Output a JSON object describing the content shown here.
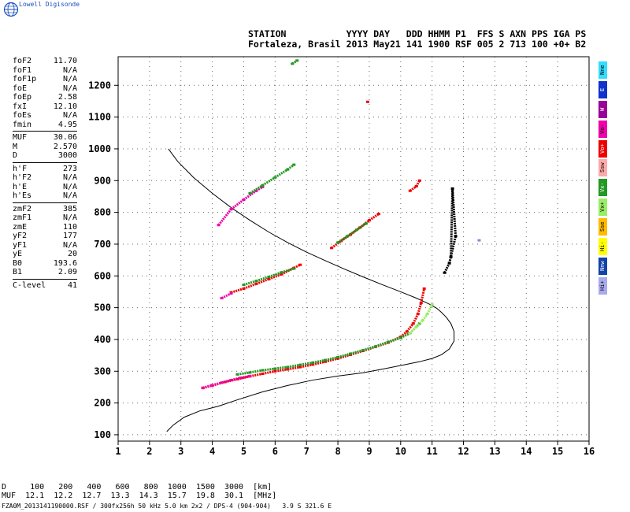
{
  "brand": {
    "name": "Lowell Digisonde"
  },
  "header": {
    "line1": "STATION           YYYY DAY   DDD HHMM P1  FFS S AXN PPS IGA PS",
    "line2": "Fortaleza, Brasil 2013 May21 141 1900 RSF 005 2 713 100 +0+ B2"
  },
  "params": [
    {
      "name": "foF2",
      "value": "11.70"
    },
    {
      "name": "foF1",
      "value": "N/A"
    },
    {
      "name": "foF1p",
      "value": "N/A"
    },
    {
      "name": "foE",
      "value": "N/A"
    },
    {
      "name": "foEp",
      "value": "2.58"
    },
    {
      "name": "fxI",
      "value": "12.10"
    },
    {
      "name": "foEs",
      "value": "N/A"
    },
    {
      "name": "fmin",
      "value": "4.95"
    },
    {
      "name": "MUF",
      "value": "30.06"
    },
    {
      "name": "M",
      "value": "2.570"
    },
    {
      "name": "D",
      "value": "3000"
    },
    {
      "name": "h'F",
      "value": "273"
    },
    {
      "name": "h'F2",
      "value": "N/A"
    },
    {
      "name": "h'E",
      "value": "N/A"
    },
    {
      "name": "h'Es",
      "value": "N/A"
    },
    {
      "name": "zmF2",
      "value": "385"
    },
    {
      "name": "zmF1",
      "value": "N/A"
    },
    {
      "name": "zmE",
      "value": "110"
    },
    {
      "name": "yF2",
      "value": "177"
    },
    {
      "name": "yF1",
      "value": "N/A"
    },
    {
      "name": "yE",
      "value": "20"
    },
    {
      "name": "B0",
      "value": "193.6"
    },
    {
      "name": "B1",
      "value": "2.09"
    },
    {
      "name": "C-level",
      "value": "41"
    }
  ],
  "legend": [
    {
      "label": "Nne",
      "color": "#33ddff"
    },
    {
      "label": "E",
      "color": "#1133cc"
    },
    {
      "label": "W",
      "color": "#990099"
    },
    {
      "label": "Vo-",
      "color": "#ee00aa"
    },
    {
      "label": "Vo+",
      "color": "#ee0000"
    },
    {
      "label": "Ssw",
      "color": "#ffaaaa"
    },
    {
      "label": "Vx-",
      "color": "#229922"
    },
    {
      "label": "Vx+",
      "color": "#99ee66"
    },
    {
      "label": "Sse",
      "color": "#ffbb00"
    },
    {
      "label": "Hi-",
      "color": "#ffff00"
    },
    {
      "label": "Nnw",
      "color": "#1144aa"
    },
    {
      "label": "Hi+",
      "color": "#aaaaee"
    }
  ],
  "muf_table": {
    "line1": "D     100   200   400   600   800  1000  1500  3000  [km]",
    "line2": "MUF  12.1  12.2  12.7  13.3  14.3  15.7  19.8  30.1  [MHz]"
  },
  "footer": "FZA0M_2013141190000.RSF / 300fx256h 50 kHz 5.0 km 2x2 / DPS-4 (904-904)   3.9 S 321.6 E",
  "chart_data": {
    "type": "scatter",
    "xlim": [
      1,
      16
    ],
    "ylim": [
      80,
      1290
    ],
    "x_ticks": [
      1,
      2,
      3,
      4,
      5,
      6,
      7,
      8,
      9,
      10,
      11,
      12,
      13,
      14,
      15,
      16
    ],
    "y_ticks": [
      100,
      200,
      300,
      400,
      500,
      600,
      700,
      800,
      900,
      1000,
      1100,
      1200
    ],
    "grid": true,
    "profile_line": {
      "x": [
        2.6,
        2.9,
        3.4,
        4.0,
        4.6,
        5.2,
        5.8,
        6.4,
        7.0,
        7.6,
        8.2,
        8.8,
        9.4,
        10.0,
        10.5,
        10.9,
        11.15,
        11.3,
        11.45,
        11.6,
        11.7,
        11.7,
        11.55,
        11.3,
        11.0,
        10.6,
        10.1,
        9.5,
        8.8,
        8.0,
        7.2,
        6.4,
        5.6,
        4.8,
        4.2,
        3.6,
        3.1,
        2.75,
        2.55
      ],
      "y": [
        1000,
        960,
        910,
        860,
        815,
        775,
        738,
        705,
        675,
        648,
        622,
        597,
        573,
        550,
        530,
        512,
        498,
        485,
        470,
        450,
        425,
        395,
        370,
        352,
        340,
        330,
        320,
        308,
        295,
        285,
        272,
        255,
        235,
        210,
        190,
        175,
        155,
        130,
        110
      ]
    },
    "traces": [
      {
        "mode": "O-",
        "color": "#ee0000",
        "x": [
          3.7,
          4.0,
          4.4,
          4.8,
          5.2,
          5.6,
          6.0,
          6.4,
          6.8,
          7.2,
          7.6,
          8.0,
          8.4,
          8.8,
          9.2,
          9.6,
          10.0,
          10.2,
          10.4,
          10.55,
          10.65,
          10.75
        ],
        "y": [
          247,
          255,
          266,
          275,
          284,
          292,
          300,
          306,
          313,
          321,
          330,
          340,
          352,
          364,
          377,
          390,
          408,
          425,
          450,
          480,
          515,
          560
        ]
      },
      {
        "mode": "Vo-",
        "color": "#ee00aa",
        "x": [
          3.7,
          4.0,
          4.3,
          4.6,
          4.9,
          5.2
        ],
        "y": [
          248,
          256,
          264,
          272,
          279,
          285
        ]
      },
      {
        "mode": "Vx-",
        "color": "#229922",
        "x": [
          4.8,
          5.2,
          5.6,
          6.0,
          6.4,
          6.8,
          7.2,
          7.6,
          8.0,
          8.4,
          8.8,
          9.2,
          9.6,
          10.0,
          10.3,
          10.6
        ],
        "y": [
          290,
          296,
          303,
          308,
          313,
          320,
          327,
          335,
          344,
          355,
          366,
          378,
          392,
          405,
          420,
          450
        ]
      },
      {
        "mode": "Vx+",
        "color": "#99ee66",
        "x": [
          10.3,
          10.5,
          10.7,
          10.85,
          11.0
        ],
        "y": [
          420,
          440,
          460,
          480,
          510
        ]
      },
      {
        "mode": "O-",
        "color": "#ee0000",
        "x": [
          4.6,
          5.0,
          5.4,
          5.8,
          6.2,
          6.6,
          6.8
        ],
        "y": [
          548,
          560,
          575,
          590,
          605,
          625,
          635
        ]
      },
      {
        "mode": "Vo-",
        "color": "#ee00aa",
        "x": [
          4.3,
          4.6
        ],
        "y": [
          530,
          545
        ]
      },
      {
        "mode": "Vx-",
        "color": "#229922",
        "x": [
          5.0,
          5.4,
          5.8,
          6.2,
          6.6
        ],
        "y": [
          572,
          584,
          597,
          611,
          623
        ]
      },
      {
        "mode": "O-",
        "color": "#ee0000",
        "x": [
          7.8,
          8.1,
          8.4,
          8.7,
          9.0,
          9.3
        ],
        "y": [
          688,
          710,
          730,
          752,
          775,
          795
        ]
      },
      {
        "mode": "Vx-",
        "color": "#229922",
        "x": [
          8.0,
          8.3,
          8.6,
          8.9
        ],
        "y": [
          705,
          725,
          745,
          765
        ]
      },
      {
        "mode": "O-",
        "color": "#ee0000",
        "x": [
          10.3,
          10.5,
          10.6
        ],
        "y": [
          868,
          882,
          900
        ]
      },
      {
        "mode": "Vo-",
        "color": "#ee00aa",
        "x": [
          4.2,
          4.6,
          5.0,
          5.4,
          5.6
        ],
        "y": [
          760,
          810,
          840,
          868,
          880
        ]
      },
      {
        "mode": "Vx-",
        "color": "#229922",
        "x": [
          5.2,
          5.6,
          6.0,
          6.4,
          6.6
        ],
        "y": [
          860,
          885,
          910,
          935,
          950
        ]
      },
      {
        "mode": "Vx-",
        "color": "#229922",
        "x": [
          6.55,
          6.7
        ],
        "y": [
          1268,
          1278
        ]
      },
      {
        "mode": "O-",
        "color": "#ee0000",
        "x": [
          8.95
        ],
        "y": [
          1148
        ]
      },
      {
        "mode": "E",
        "color": "#000000",
        "x": [
          11.4,
          11.55,
          11.75,
          11.65,
          11.6
        ],
        "y": [
          610,
          640,
          725,
          875,
          660
        ]
      },
      {
        "mode": "W",
        "color": "#8888dd",
        "x": [
          12.5
        ],
        "y": [
          712
        ]
      }
    ]
  }
}
